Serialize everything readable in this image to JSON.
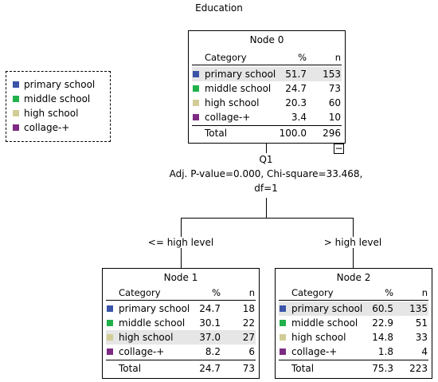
{
  "title": "Education",
  "legend": [
    {
      "label": "primary school",
      "color": "#3a54a8"
    },
    {
      "label": "middle school",
      "color": "#22b04a"
    },
    {
      "label": "high school",
      "color": "#d2cd96"
    },
    {
      "label": "collage-+",
      "color": "#7d2a83"
    }
  ],
  "columns": {
    "category": "Category",
    "pct": "%",
    "n": "n"
  },
  "nodes": [
    {
      "name": "Node 0",
      "rows": [
        {
          "category": "primary school",
          "pct": "51.7",
          "n": "153"
        },
        {
          "category": "middle school",
          "pct": "24.7",
          "n": "73"
        },
        {
          "category": "high school",
          "pct": "20.3",
          "n": "60"
        },
        {
          "category": "collage-+",
          "pct": "3.4",
          "n": "10"
        }
      ],
      "total": {
        "label": "Total",
        "pct": "100.0",
        "n": "296"
      }
    },
    {
      "name": "Node 1",
      "rows": [
        {
          "category": "primary school",
          "pct": "24.7",
          "n": "18"
        },
        {
          "category": "middle school",
          "pct": "30.1",
          "n": "22"
        },
        {
          "category": "high school",
          "pct": "37.0",
          "n": "27"
        },
        {
          "category": "collage-+",
          "pct": "8.2",
          "n": "6"
        }
      ],
      "total": {
        "label": "Total",
        "pct": "24.7",
        "n": "73"
      }
    },
    {
      "name": "Node 2",
      "rows": [
        {
          "category": "primary school",
          "pct": "60.5",
          "n": "135"
        },
        {
          "category": "middle school",
          "pct": "22.9",
          "n": "51"
        },
        {
          "category": "high school",
          "pct": "14.8",
          "n": "33"
        },
        {
          "category": "collage-+",
          "pct": "1.8",
          "n": "4"
        }
      ],
      "total": {
        "label": "Total",
        "pct": "75.3",
        "n": "223"
      }
    }
  ],
  "split": {
    "variable": "Q1",
    "stats_line1": "Adj. P-value=0.000, Chi-square=33.468,",
    "stats_line2": "df=1",
    "left_label": "<= high level",
    "right_label": "> high level"
  },
  "collapse_symbol": "−"
}
